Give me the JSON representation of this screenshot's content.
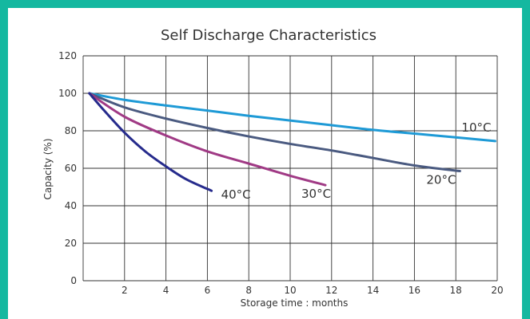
{
  "chart_data": {
    "type": "line",
    "title": "Self Discharge Characteristics",
    "xlabel": "Storage time : months",
    "ylabel": "Capacity (%)",
    "xlim": [
      0,
      20
    ],
    "ylim": [
      0,
      120
    ],
    "x_ticks": [
      2,
      4,
      6,
      8,
      10,
      12,
      14,
      16,
      18,
      20
    ],
    "y_ticks": [
      0,
      20,
      40,
      60,
      80,
      100,
      120
    ],
    "grid": true,
    "series": [
      {
        "name": "10°C",
        "color": "#1e9ad6",
        "x": [
          0.3,
          2,
          4,
          6,
          8,
          10,
          12,
          14,
          16,
          18,
          19.9
        ],
        "y": [
          100,
          96.5,
          93.5,
          90.8,
          88,
          85.5,
          83,
          80.5,
          78.5,
          76.5,
          74.5
        ]
      },
      {
        "name": "20°C",
        "color": "#4a5a80",
        "x": [
          0.3,
          2,
          4,
          6,
          8,
          10,
          12,
          14,
          16,
          18.2
        ],
        "y": [
          100,
          92.5,
          86.5,
          81.5,
          77,
          73,
          69.5,
          65.5,
          61.5,
          58.5
        ]
      },
      {
        "name": "30°C",
        "color": "#a03a85",
        "x": [
          0.3,
          2,
          4,
          6,
          8,
          10,
          11.7
        ],
        "y": [
          100,
          87.5,
          77.5,
          69,
          62.5,
          56,
          51
        ]
      },
      {
        "name": "40°C",
        "color": "#262b8c",
        "x": [
          0.3,
          1,
          2,
          3,
          4,
          5,
          6.2
        ],
        "y": [
          100,
          91,
          79,
          69,
          61,
          54,
          48
        ]
      }
    ]
  }
}
